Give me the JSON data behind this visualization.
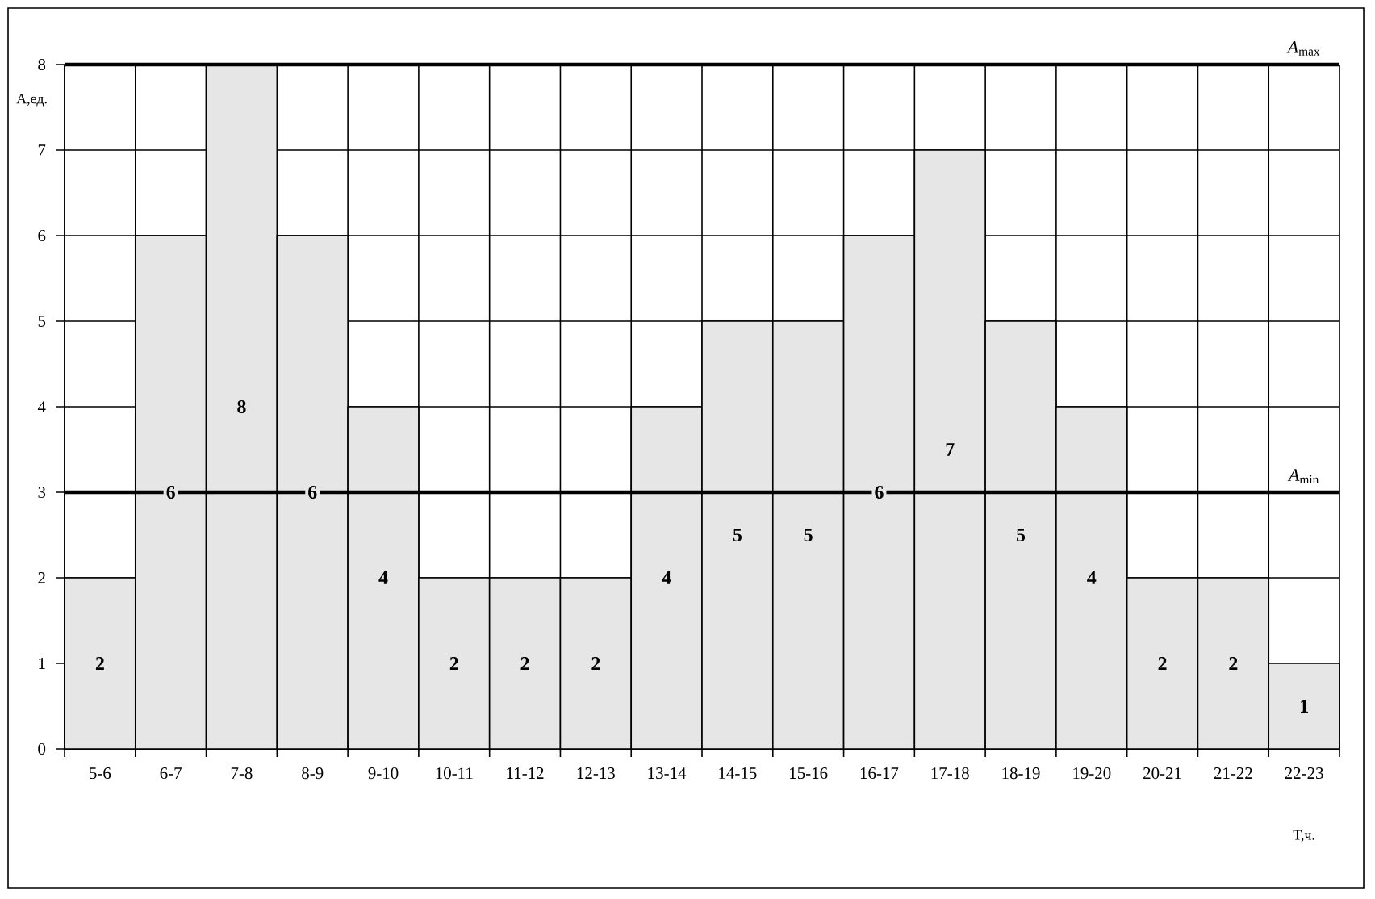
{
  "chart_data": {
    "type": "bar",
    "categories": [
      "5-6",
      "6-7",
      "7-8",
      "8-9",
      "9-10",
      "10-11",
      "11-12",
      "12-13",
      "13-14",
      "14-15",
      "15-16",
      "16-17",
      "17-18",
      "18-19",
      "19-20",
      "20-21",
      "21-22",
      "22-23"
    ],
    "values": [
      2,
      6,
      8,
      6,
      4,
      2,
      2,
      2,
      4,
      5,
      5,
      6,
      7,
      5,
      4,
      2,
      2,
      1
    ],
    "color": "#e6e6e6",
    "ylim": [
      0,
      8
    ],
    "yticks": [
      0,
      1,
      2,
      3,
      4,
      5,
      6,
      7,
      8
    ],
    "xlabel": "T,ч.",
    "ylabel": "A,ед.",
    "grid": true,
    "data_labels": true,
    "ref_lines": [
      {
        "axis": "y",
        "value": 8,
        "label": "*A*$_{max}$",
        "color": "#000000"
      },
      {
        "axis": "y",
        "value": 3,
        "label": "*A*$_{min}$",
        "color": "#000000"
      }
    ]
  }
}
